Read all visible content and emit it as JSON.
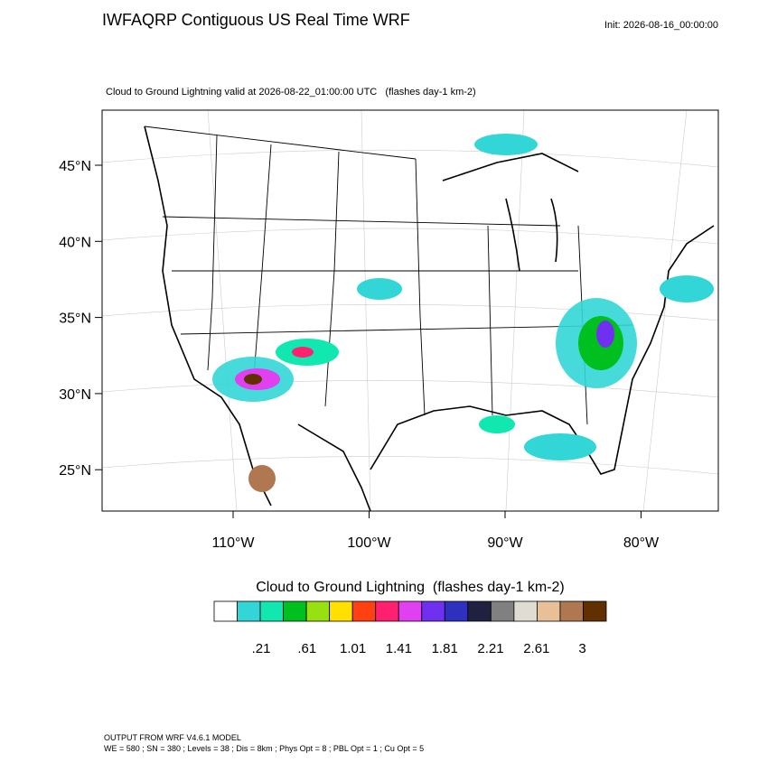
{
  "header": {
    "title": "IWFAQRP Contiguous US Real Time WRF",
    "init": "Init: 2026-08-16_00:00:00"
  },
  "map": {
    "subtitle": "Cloud to Ground Lightning valid at 2026-08-22_01:00:00 UTC   (flashes day-1 km-2)",
    "lat_labels": [
      "45°N",
      "40°N",
      "35°N",
      "30°N",
      "25°N"
    ],
    "lon_labels": [
      "110°W",
      "100°W",
      "90°W",
      "80°W"
    ]
  },
  "colorbar": {
    "title": "Cloud to Ground Lightning  (flashes day-1 km-2)",
    "colors": [
      "#ffffff",
      "#33d6d6",
      "#10e8b0",
      "#00c020",
      "#98e010",
      "#ffe000",
      "#ff4010",
      "#ff2070",
      "#e040f0",
      "#7030f0",
      "#3030c0",
      "#202040",
      "#808080",
      "#e0dcd4",
      "#e8c098",
      "#b07850",
      "#603000"
    ],
    "labels": [
      ".21",
      ".61",
      "1.01",
      "1.41",
      "1.81",
      "2.21",
      "2.61",
      "3"
    ]
  },
  "footer": {
    "lines": [
      "OUTPUT FROM WRF V4.6.1 MODEL",
      "WE = 580 ; SN = 380 ; Levels = 38 ; Dis = 8km ; Phys Opt = 8 ; PBL Opt = 1 ; Cu Opt = 5"
    ]
  }
}
